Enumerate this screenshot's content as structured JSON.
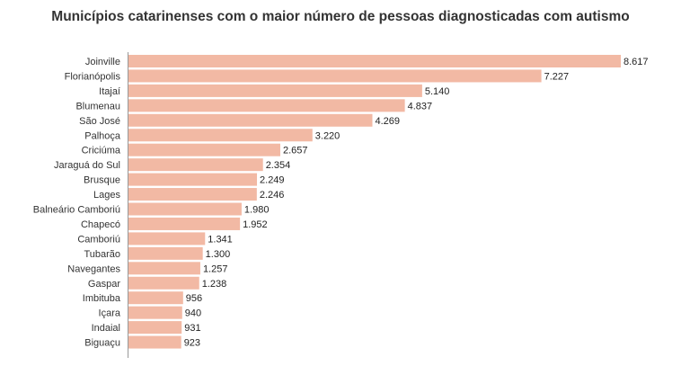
{
  "chart_data": {
    "type": "bar",
    "orientation": "horizontal",
    "title": "Municípios catarinenses com o maior número de pessoas diagnosticadas com autismo",
    "categories": [
      "Joinville",
      "Florianópolis",
      "Itajaí",
      "Blumenau",
      "São José",
      "Palhoça",
      "Criciúma",
      "Jaraguá do Sul",
      "Brusque",
      "Lages",
      "Balneário Camboriú",
      "Chapecó",
      "Camboriú",
      "Tubarão",
      "Navegantes",
      "Gaspar",
      "Imbituba",
      "Içara",
      "Indaial",
      "Biguaçu"
    ],
    "values": [
      8617,
      7227,
      5140,
      4837,
      4269,
      3220,
      2657,
      2354,
      2249,
      2246,
      1980,
      1952,
      1341,
      1300,
      1257,
      1238,
      956,
      940,
      931,
      923
    ],
    "value_labels": [
      "8.617",
      "7.227",
      "5.140",
      "4.837",
      "4.269",
      "3.220",
      "2.657",
      "2.354",
      "2.249",
      "2.246",
      "1.980",
      "1.952",
      "1.341",
      "1.300",
      "1.257",
      "1.238",
      "956",
      "940",
      "931",
      "923"
    ],
    "bar_color": "#f2b9a4",
    "axis_color": "#999999",
    "grid": false,
    "legend": "none"
  }
}
